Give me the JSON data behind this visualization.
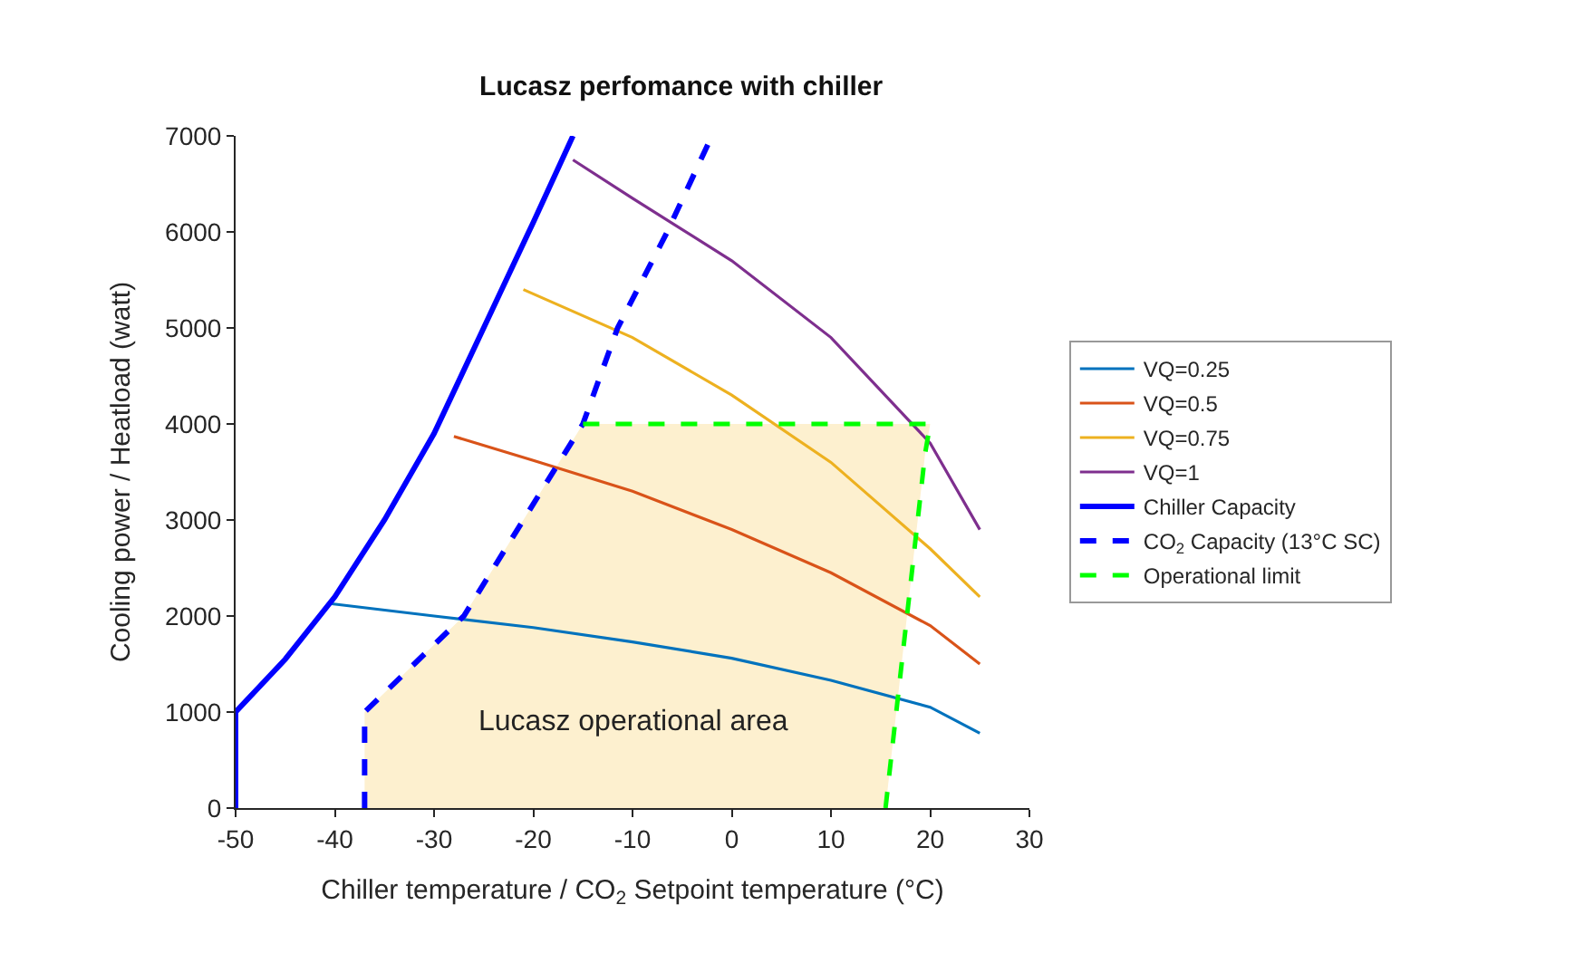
{
  "chart_data": {
    "type": "line",
    "title": "Lucasz perfomance with chiller",
    "xlabel": "Chiller temperature / CO$_{2}$ Setpoint temperature (°C)",
    "ylabel": "Cooling power / Heatload (watt)",
    "xlim": [
      -50,
      30
    ],
    "xticks": [
      -50,
      -40,
      -30,
      -20,
      -10,
      0,
      10,
      20,
      30
    ],
    "ylim": [
      0,
      7000
    ],
    "yticks": [
      0,
      1000,
      2000,
      3000,
      4000,
      5000,
      6000,
      7000
    ],
    "legend": "right",
    "marker": "none",
    "series": [
      {
        "type": "area",
        "color": "#fdf0cf",
        "x": [
          -37,
          -37,
          -32,
          -27,
          -21,
          -15,
          20,
          19.5,
          15.5
        ],
        "values": [
          0,
          1000,
          1500,
          2000,
          3000,
          4000,
          4000,
          3700,
          0
        ]
      },
      {
        "name": "VQ=0.25",
        "color": "#0072bd",
        "line_style": "solid",
        "x": [
          -40.5,
          -30,
          -20,
          -10,
          0,
          10,
          20,
          25
        ],
        "values": [
          2130,
          2000,
          1880,
          1730,
          1560,
          1330,
          1050,
          780
        ]
      },
      {
        "name": "VQ=0.5",
        "color": "#d95319",
        "line_style": "solid",
        "x": [
          -28,
          -20,
          -10,
          0,
          10,
          20,
          25
        ],
        "values": [
          3870,
          3620,
          3300,
          2900,
          2450,
          1900,
          1500
        ]
      },
      {
        "name": "VQ=0.75",
        "color": "#edb120",
        "line_style": "solid",
        "x": [
          -21,
          -10,
          0,
          10,
          20,
          25
        ],
        "values": [
          5400,
          4900,
          4300,
          3600,
          2700,
          2200
        ]
      },
      {
        "name": "VQ=1",
        "color": "#7e2f8e",
        "line_style": "solid",
        "x": [
          -16,
          -10,
          0,
          10,
          20,
          25
        ],
        "values": [
          6750,
          6350,
          5700,
          4900,
          3800,
          2900
        ]
      },
      {
        "name": "Chiller Capacity",
        "color": "#0000ff",
        "line_style": "solid",
        "x": [
          -50,
          -50,
          -45,
          -40,
          -35,
          -30,
          -25,
          -20,
          -16
        ],
        "values": [
          0,
          1000,
          1550,
          2200,
          3000,
          3900,
          5000,
          6100,
          7000
        ]
      },
      {
        "name": "CO$_{2}$ Capacity (13°C SC)",
        "color": "#0000ff",
        "line_style": "dashed",
        "x": [
          -37,
          -37,
          -32,
          -27,
          -21,
          -15,
          -11.5,
          -6.5,
          -2
        ],
        "values": [
          0,
          1000,
          1500,
          2000,
          3000,
          4000,
          5000,
          6000,
          7000
        ]
      },
      {
        "name": "Operational limit",
        "color": "#00ff00",
        "line_style": "dashed",
        "x": [
          15.5,
          19.5,
          20,
          -15
        ],
        "values": [
          0,
          3700,
          4000,
          4000
        ]
      }
    ],
    "annotations": [
      "Lucasz operational area"
    ]
  }
}
